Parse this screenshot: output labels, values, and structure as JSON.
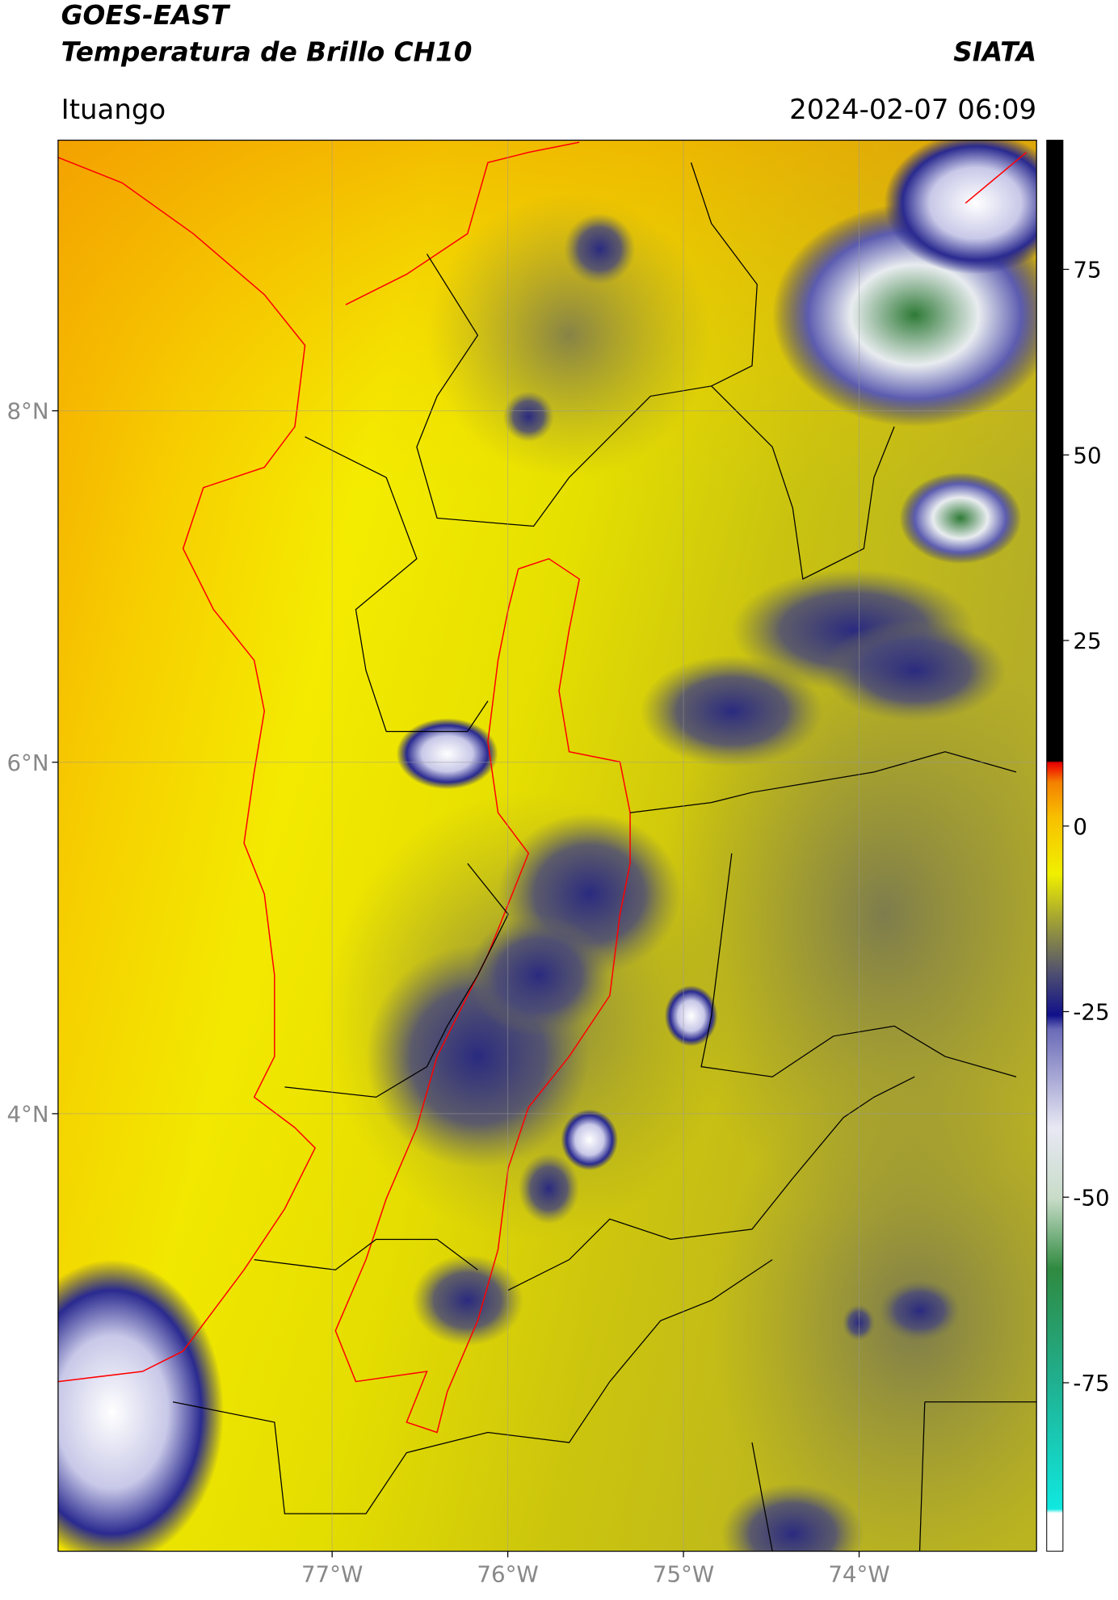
{
  "title": "GOES-EAST",
  "subtitle": "Temperatura de Brillo CH10",
  "source": "SIATA",
  "location": "Ituango",
  "timestamp": "2024-02-07 06:09",
  "map": {
    "lonlim": [
      -78.56,
      -72.99
    ],
    "latlim": [
      1.51,
      9.54
    ],
    "lon_ticks": [
      {
        "value": -77,
        "label": "77°W"
      },
      {
        "value": -76,
        "label": "76°W"
      },
      {
        "value": -75,
        "label": "75°W"
      },
      {
        "value": -74,
        "label": "74°W"
      }
    ],
    "lat_ticks": [
      {
        "value": 8,
        "label": "8°N"
      },
      {
        "value": 6,
        "label": "6°N"
      },
      {
        "value": 4,
        "label": "4°N"
      }
    ]
  },
  "colorbar": {
    "lim": [
      -97.7,
      92.4
    ],
    "ticks": [
      75,
      50,
      25,
      0,
      -25,
      -50,
      -75
    ]
  }
}
